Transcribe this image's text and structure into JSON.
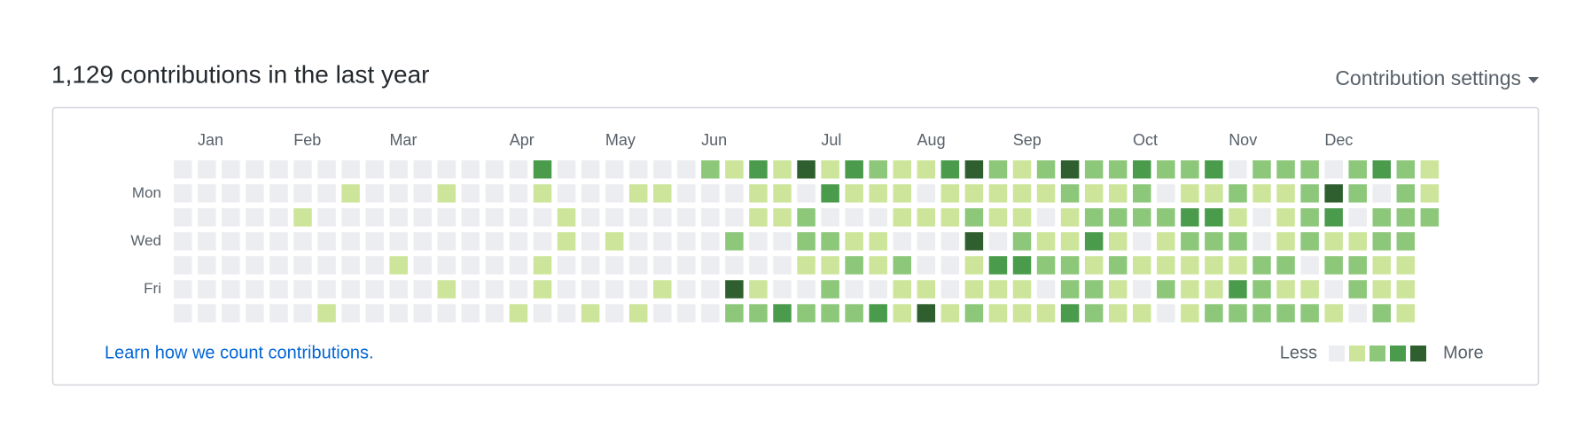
{
  "header": {
    "title": "1,129 contributions in the last year",
    "settings": "Contribution settings"
  },
  "calendar": {
    "months": [
      {
        "label": "Jan",
        "week": 1
      },
      {
        "label": "Feb",
        "week": 5
      },
      {
        "label": "Mar",
        "week": 9
      },
      {
        "label": "Apr",
        "week": 14
      },
      {
        "label": "May",
        "week": 18
      },
      {
        "label": "Jun",
        "week": 22
      },
      {
        "label": "Jul",
        "week": 27
      },
      {
        "label": "Aug",
        "week": 31
      },
      {
        "label": "Sep",
        "week": 35
      },
      {
        "label": "Oct",
        "week": 40
      },
      {
        "label": "Nov",
        "week": 44
      },
      {
        "label": "Dec",
        "week": 48
      }
    ],
    "weekdays": [
      null,
      "Mon",
      null,
      "Wed",
      null,
      "Fri",
      null
    ],
    "palette": [
      "#ebedf0",
      "#cde59a",
      "#8cc77a",
      "#4a9b4c",
      "#2f5f2e"
    ],
    "levels": [
      [
        0,
        0,
        0,
        0,
        0,
        0,
        0,
        0,
        0,
        0,
        0,
        0,
        0,
        0,
        0,
        3,
        0,
        0,
        0,
        0,
        0,
        0,
        2,
        1,
        3,
        1,
        4,
        1,
        3,
        2,
        1,
        1,
        3,
        4,
        2,
        1,
        2,
        4,
        2,
        2,
        3,
        2,
        2,
        3,
        0,
        2,
        2,
        2,
        0,
        2,
        3,
        2,
        1
      ],
      [
        0,
        0,
        0,
        0,
        0,
        0,
        0,
        1,
        0,
        0,
        0,
        1,
        0,
        0,
        0,
        1,
        0,
        0,
        0,
        1,
        1,
        0,
        0,
        0,
        1,
        1,
        0,
        3,
        1,
        1,
        1,
        0,
        1,
        1,
        1,
        1,
        1,
        2,
        1,
        1,
        2,
        0,
        1,
        1,
        2,
        1,
        1,
        2,
        4,
        2,
        0,
        2,
        1
      ],
      [
        0,
        0,
        0,
        0,
        0,
        1,
        0,
        0,
        0,
        0,
        0,
        0,
        0,
        0,
        0,
        0,
        1,
        0,
        0,
        0,
        0,
        0,
        0,
        0,
        1,
        1,
        2,
        0,
        0,
        0,
        1,
        1,
        1,
        2,
        1,
        1,
        0,
        1,
        2,
        2,
        2,
        2,
        3,
        3,
        1,
        0,
        1,
        2,
        3,
        0,
        2,
        2,
        2
      ],
      [
        0,
        0,
        0,
        0,
        0,
        0,
        0,
        0,
        0,
        0,
        0,
        0,
        0,
        0,
        0,
        0,
        1,
        0,
        1,
        0,
        0,
        0,
        0,
        2,
        0,
        0,
        2,
        2,
        1,
        1,
        0,
        0,
        0,
        4,
        0,
        2,
        1,
        1,
        3,
        1,
        0,
        1,
        2,
        2,
        2,
        0,
        1,
        2,
        1,
        1,
        2,
        2,
        null
      ],
      [
        0,
        0,
        0,
        0,
        0,
        0,
        0,
        0,
        0,
        1,
        0,
        0,
        0,
        0,
        0,
        1,
        0,
        0,
        0,
        0,
        0,
        0,
        0,
        0,
        0,
        0,
        1,
        1,
        2,
        1,
        2,
        0,
        0,
        1,
        3,
        3,
        2,
        2,
        1,
        2,
        1,
        1,
        1,
        1,
        1,
        2,
        2,
        0,
        2,
        2,
        1,
        1,
        null
      ],
      [
        0,
        0,
        0,
        0,
        0,
        0,
        0,
        0,
        0,
        0,
        0,
        1,
        0,
        0,
        0,
        1,
        0,
        0,
        0,
        0,
        1,
        0,
        0,
        4,
        1,
        0,
        0,
        2,
        0,
        0,
        1,
        1,
        0,
        1,
        1,
        1,
        0,
        2,
        2,
        1,
        0,
        2,
        1,
        1,
        3,
        2,
        1,
        1,
        0,
        2,
        1,
        1,
        null
      ],
      [
        0,
        0,
        0,
        0,
        0,
        0,
        1,
        0,
        0,
        0,
        0,
        0,
        0,
        0,
        1,
        0,
        0,
        1,
        0,
        1,
        0,
        0,
        0,
        2,
        2,
        3,
        2,
        2,
        2,
        3,
        1,
        4,
        1,
        2,
        1,
        1,
        1,
        3,
        2,
        1,
        1,
        0,
        1,
        2,
        2,
        2,
        2,
        2,
        1,
        0,
        2,
        1,
        null
      ]
    ]
  },
  "footer": {
    "link": "Learn how we count contributions.",
    "less": "Less",
    "more": "More"
  }
}
